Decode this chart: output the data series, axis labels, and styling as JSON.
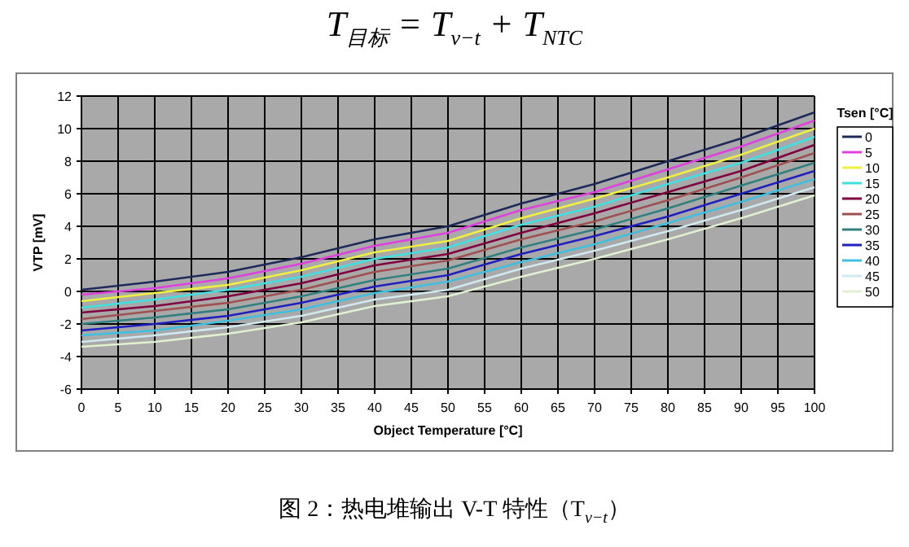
{
  "chart_data": {
    "type": "line",
    "title": "T$_{目标}$ = T$_{v−t}$ + T$_{NTC}$",
    "xlabel": "Object Temperature [°C]",
    "ylabel": "VTP [mV]",
    "legend_title": "Tsen [°C]",
    "annotations": [
      "图 2：热电堆输出 V-T 特性（T$_{v−t}$）"
    ],
    "x": [
      0,
      10,
      20,
      30,
      40,
      50,
      60,
      70,
      80,
      90,
      100
    ],
    "xlim": [
      0,
      100
    ],
    "xticks": [
      0,
      5,
      10,
      15,
      20,
      25,
      30,
      35,
      40,
      45,
      50,
      55,
      60,
      65,
      70,
      75,
      80,
      85,
      90,
      95,
      100
    ],
    "ylim": [
      -6,
      12
    ],
    "yticks": [
      -6,
      -4,
      -2,
      0,
      2,
      4,
      6,
      8,
      10,
      12
    ],
    "grid": true,
    "legend": "right",
    "marker": "none",
    "line_style": "solid",
    "series": [
      {
        "name": "0",
        "color": "#1f2a5a",
        "values": [
          0.1,
          0.6,
          1.2,
          2.1,
          3.2,
          4.0,
          5.4,
          6.6,
          8.0,
          9.4,
          11.0
        ]
      },
      {
        "name": "5",
        "color": "#e040e0",
        "values": [
          -0.2,
          0.2,
          0.8,
          1.7,
          2.8,
          3.6,
          5.0,
          6.1,
          7.5,
          8.9,
          10.5
        ]
      },
      {
        "name": "10",
        "color": "#f0f040",
        "values": [
          -0.6,
          -0.1,
          0.4,
          1.3,
          2.4,
          3.1,
          4.5,
          5.7,
          7.0,
          8.4,
          10.0
        ]
      },
      {
        "name": "15",
        "color": "#40e0e0",
        "values": [
          -1.0,
          -0.5,
          0.1,
          0.9,
          2.0,
          2.7,
          4.1,
          5.2,
          6.6,
          7.9,
          9.5
        ]
      },
      {
        "name": "20",
        "color": "#800040",
        "values": [
          -1.3,
          -0.9,
          -0.3,
          0.5,
          1.6,
          2.3,
          3.6,
          4.8,
          6.1,
          7.4,
          9.0
        ]
      },
      {
        "name": "25",
        "color": "#a05050",
        "values": [
          -1.7,
          -1.2,
          -0.7,
          0.1,
          1.2,
          1.9,
          3.2,
          4.3,
          5.6,
          7.0,
          8.5
        ]
      },
      {
        "name": "30",
        "color": "#308080",
        "values": [
          -2.0,
          -1.6,
          -1.1,
          -0.3,
          0.7,
          1.4,
          2.7,
          3.8,
          5.1,
          6.5,
          7.9
        ]
      },
      {
        "name": "35",
        "color": "#2020c0",
        "values": [
          -2.4,
          -2.0,
          -1.5,
          -0.7,
          0.3,
          1.0,
          2.3,
          3.4,
          4.6,
          6.0,
          7.4
        ]
      },
      {
        "name": "40",
        "color": "#40c0e0",
        "values": [
          -2.7,
          -2.4,
          -1.8,
          -1.1,
          -0.1,
          0.6,
          1.8,
          2.9,
          4.2,
          5.5,
          6.9
        ]
      },
      {
        "name": "45",
        "color": "#d0e8f0",
        "values": [
          -3.1,
          -2.7,
          -2.2,
          -1.5,
          -0.5,
          0.1,
          1.4,
          2.5,
          3.7,
          5.0,
          6.4
        ]
      },
      {
        "name": "50",
        "color": "#e0f0d0",
        "values": [
          -3.4,
          -3.1,
          -2.6,
          -1.9,
          -0.9,
          -0.3,
          0.9,
          2.0,
          3.2,
          4.5,
          5.9
        ]
      }
    ]
  }
}
